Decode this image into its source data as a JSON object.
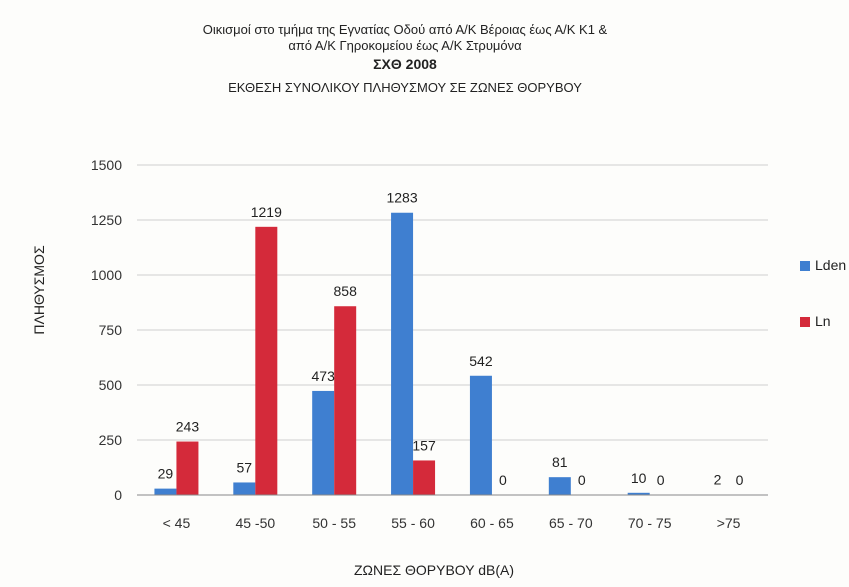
{
  "chart_data": {
    "type": "bar",
    "title": [
      "Οικισμοί στο τμήμα της Εγνατίας Οδού από Α/Κ Βέροιας έως Α/Κ  Κ1 &",
      "από Α/Κ Γηροκομείου έως Α/Κ Στρυμόνα",
      "ΣΧΘ 2008",
      "ΕΚΘΕΣΗ ΣΥΝΟΛΙΚΟΥ ΠΛΗΘΥΣΜΟΥ ΣΕ ΖΩΝΕΣ ΘΟΡΥΒΟΥ"
    ],
    "xlabel": "ΖΩΝΕΣ ΘΟΡΥΒΟΥ  dB(A)",
    "ylabel": "ΠΛΗΘΥΣΜΟΣ",
    "categories": [
      "< 45",
      "45 -50",
      "50 - 55",
      "55 - 60",
      "60 - 65",
      "65 - 70",
      "70 - 75",
      ">75"
    ],
    "series": [
      {
        "name": "Lden",
        "color": "#3f7fd0",
        "values": [
          29,
          57,
          473,
          1283,
          542,
          81,
          10,
          2
        ]
      },
      {
        "name": "Ln",
        "color": "#d42a3a",
        "values": [
          243,
          1219,
          858,
          157,
          0,
          0,
          0,
          0
        ]
      }
    ],
    "ylim": [
      0,
      1500
    ],
    "yticks": [
      0,
      250,
      500,
      750,
      1000,
      1250,
      1500
    ],
    "grid": true,
    "legend": "right"
  }
}
